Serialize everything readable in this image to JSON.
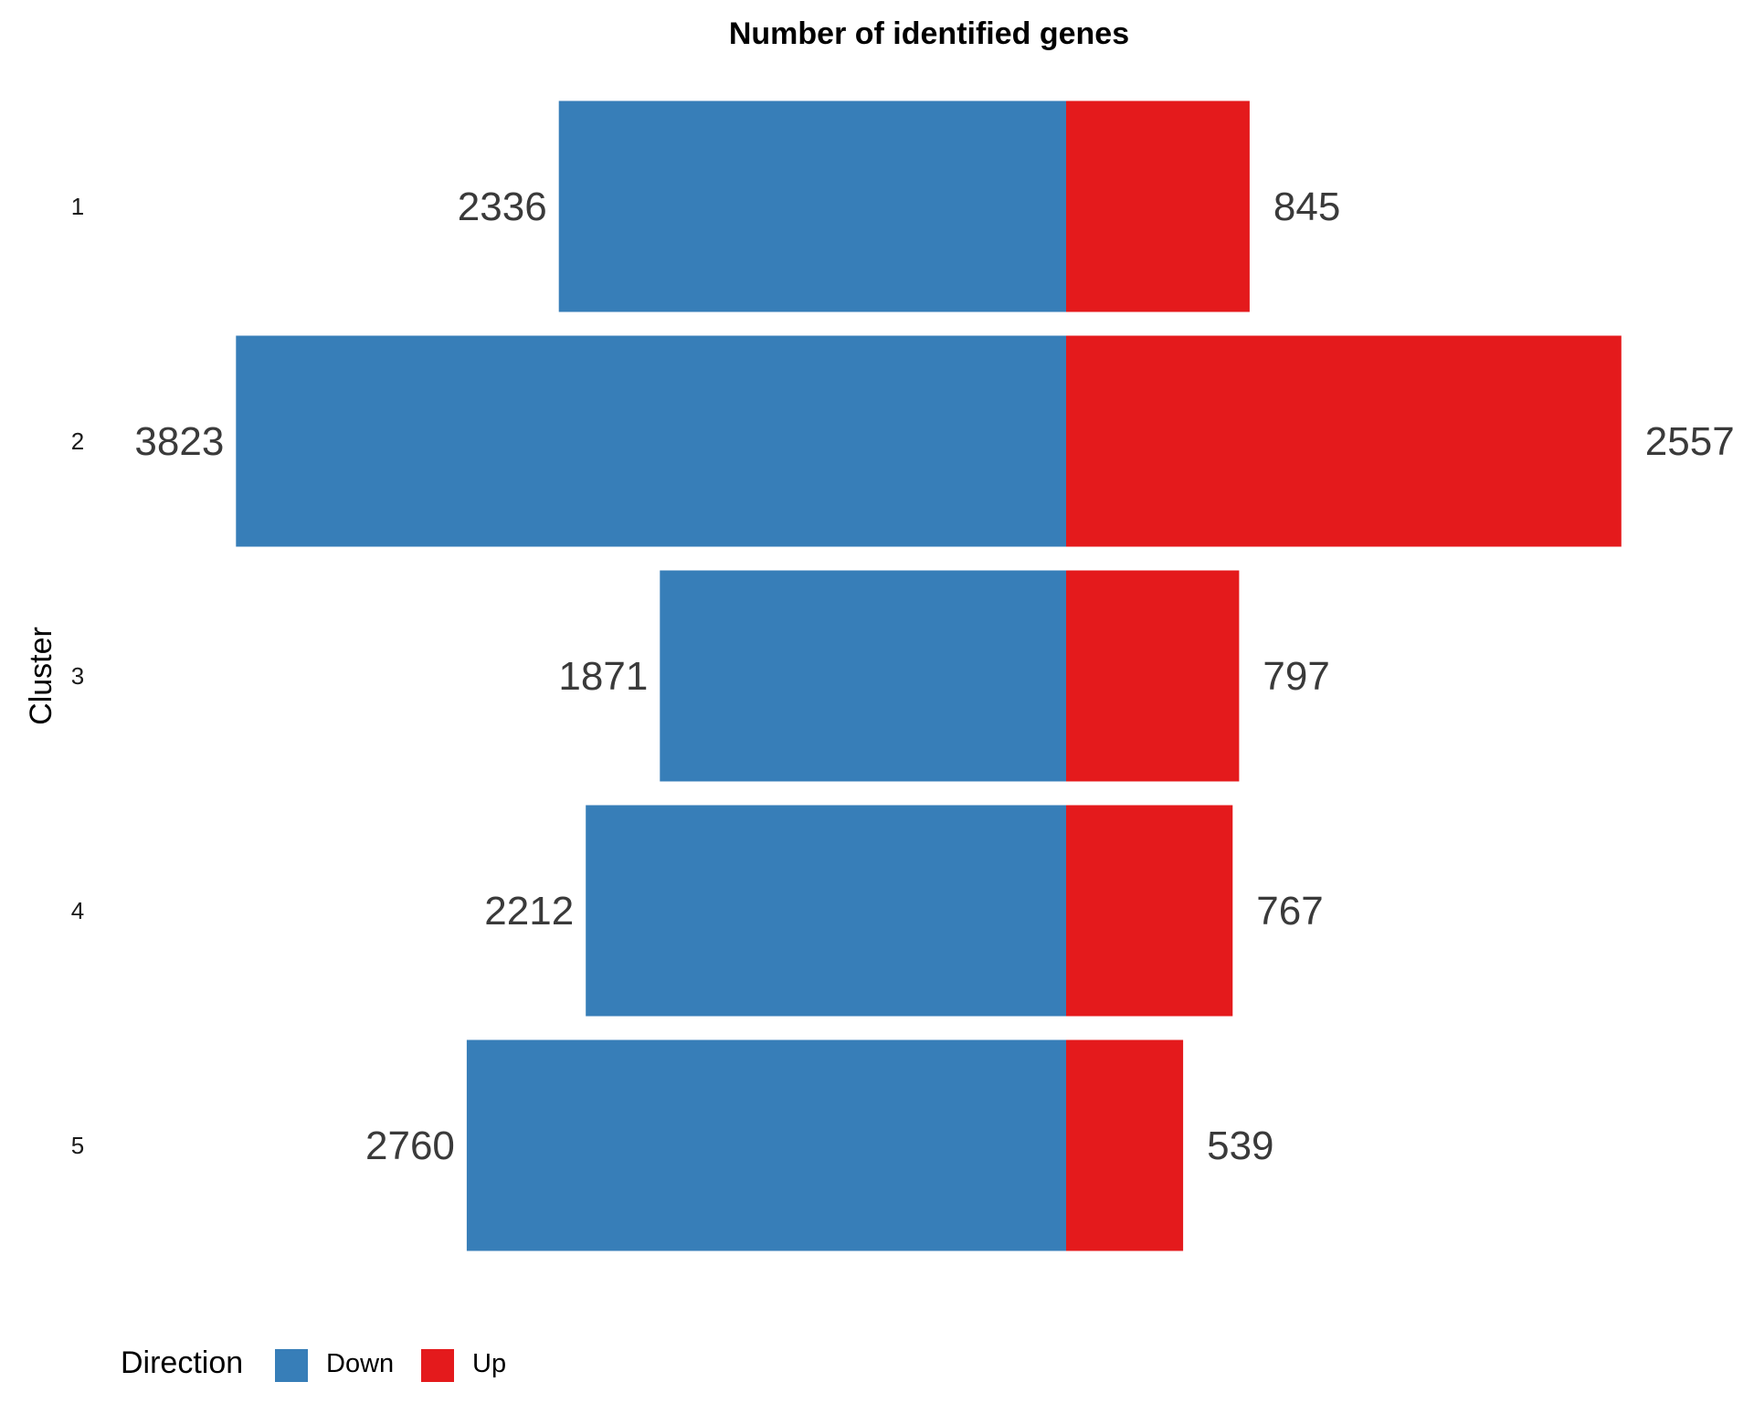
{
  "chart_data": {
    "type": "bar",
    "orientation": "horizontal-diverging",
    "title": "Number of identified genes",
    "xlabel": "",
    "ylabel": "Cluster",
    "categories": [
      "1",
      "2",
      "3",
      "4",
      "5"
    ],
    "series": [
      {
        "name": "Down",
        "values": [
          2336,
          3823,
          1871,
          2212,
          2760
        ],
        "color": "#377EB8",
        "side": "left"
      },
      {
        "name": "Up",
        "values": [
          845,
          2557,
          797,
          767,
          539
        ],
        "color": "#E41A1C",
        "side": "right"
      }
    ],
    "xlim": [
      -4020,
      2860
    ],
    "grid": false,
    "legend": {
      "title": "Direction",
      "placement": "bottom-left",
      "entries": [
        "Down",
        "Up"
      ]
    }
  }
}
